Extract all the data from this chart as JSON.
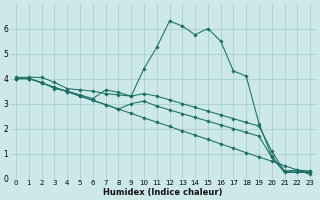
{
  "xlabel": "Humidex (Indice chaleur)",
  "background_color": "#cce8e8",
  "grid_color": "#aacfcf",
  "line_color": "#1a6e64",
  "xlim": [
    -0.5,
    23.5
  ],
  "ylim": [
    0,
    7
  ],
  "xticks": [
    0,
    1,
    2,
    3,
    4,
    5,
    6,
    7,
    8,
    9,
    10,
    11,
    12,
    13,
    14,
    15,
    16,
    17,
    18,
    19,
    20,
    21,
    22,
    23
  ],
  "yticks": [
    0,
    1,
    2,
    3,
    4,
    5,
    6
  ],
  "series": {
    "line1_x": [
      0,
      1,
      2,
      3,
      4,
      5,
      6,
      7,
      8,
      9,
      10,
      11,
      12,
      13,
      14,
      15,
      16,
      17,
      18,
      19,
      20,
      21,
      22,
      23
    ],
    "line1_y": [
      4.05,
      4.05,
      4.05,
      3.85,
      3.6,
      3.55,
      3.5,
      3.4,
      3.35,
      3.3,
      4.4,
      5.25,
      6.3,
      6.1,
      5.75,
      6.0,
      5.5,
      4.3,
      4.1,
      2.2,
      0.9,
      0.3,
      0.35,
      0.3
    ],
    "line2_x": [
      0,
      1,
      2,
      3,
      4,
      5,
      6,
      7,
      8,
      9,
      10,
      11,
      12,
      13,
      14,
      15,
      16,
      17,
      18,
      19,
      20,
      21,
      22,
      23
    ],
    "line2_y": [
      4.0,
      4.0,
      3.83,
      3.65,
      3.48,
      3.3,
      3.13,
      2.96,
      2.78,
      2.61,
      2.43,
      2.26,
      2.09,
      1.91,
      1.74,
      1.57,
      1.39,
      1.22,
      1.04,
      0.87,
      0.7,
      0.52,
      0.35,
      0.17
    ],
    "line3_x": [
      0,
      1,
      2,
      3,
      4,
      5,
      6,
      7,
      8,
      9,
      10,
      11,
      12,
      13,
      14,
      15,
      16,
      17,
      18,
      19,
      20,
      21,
      22,
      23
    ],
    "line3_y": [
      4.0,
      4.0,
      3.85,
      3.6,
      3.5,
      3.35,
      3.2,
      3.55,
      3.45,
      3.3,
      3.4,
      3.3,
      3.15,
      3.0,
      2.85,
      2.7,
      2.55,
      2.4,
      2.25,
      2.1,
      1.1,
      0.3,
      0.3,
      0.3
    ],
    "line4_x": [
      0,
      1,
      2,
      3,
      4,
      5,
      6,
      7,
      8,
      9,
      10,
      11,
      12,
      13,
      14,
      15,
      16,
      17,
      18,
      19,
      20,
      21,
      22,
      23
    ],
    "line4_y": [
      4.0,
      4.0,
      3.83,
      3.65,
      3.48,
      3.3,
      3.13,
      2.96,
      2.78,
      3.0,
      3.1,
      2.9,
      2.75,
      2.6,
      2.45,
      2.3,
      2.15,
      2.0,
      1.85,
      1.7,
      0.85,
      0.25,
      0.25,
      0.25
    ]
  },
  "markersize": 1.8,
  "linewidth": 0.75,
  "xlabel_fontsize": 6.0,
  "tick_fontsize": 5.0
}
